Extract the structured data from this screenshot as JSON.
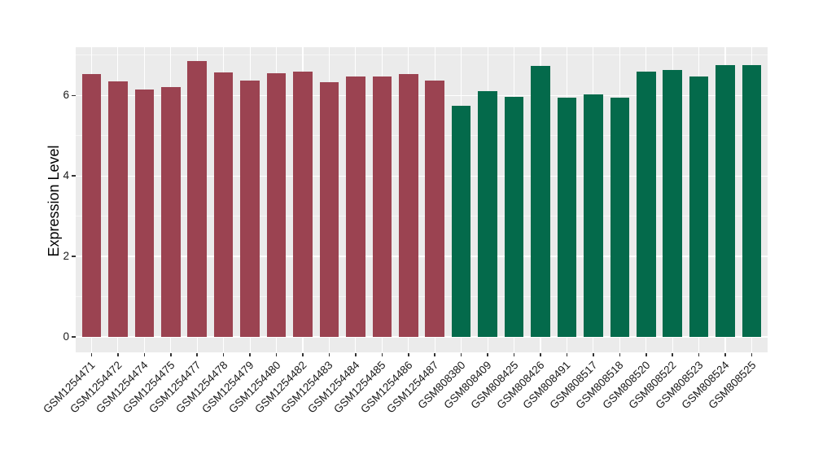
{
  "chart_data": {
    "type": "bar",
    "title": "",
    "xlabel": "",
    "ylabel": "Expression Level",
    "ylim": [
      0,
      7.2
    ],
    "yticks": [
      0,
      2,
      4,
      6
    ],
    "yticks_minor": [
      1,
      3,
      5,
      7
    ],
    "grid": "white major and minor horizontal lines plus vertical major lines on grey panel",
    "legend_position": "none",
    "panel_background": "#EBEBEB",
    "grid_color": "#FFFFFF",
    "axis_text_color": "#1A1A1A",
    "tick_color": "#333333",
    "group_colors": [
      "#9B4351",
      "#046A4B"
    ],
    "categories": [
      "GSM1254471",
      "GSM1254472",
      "GSM1254474",
      "GSM1254475",
      "GSM1254477",
      "GSM1254478",
      "GSM1254479",
      "GSM1254480",
      "GSM1254482",
      "GSM1254483",
      "GSM1254484",
      "GSM1254485",
      "GSM1254486",
      "GSM1254487",
      "GSM808380",
      "GSM808409",
      "GSM808425",
      "GSM808426",
      "GSM808491",
      "GSM808517",
      "GSM808518",
      "GSM808520",
      "GSM808522",
      "GSM808523",
      "GSM808524",
      "GSM808525"
    ],
    "values": [
      6.54,
      6.35,
      6.15,
      6.21,
      6.86,
      6.57,
      6.37,
      6.55,
      6.59,
      6.34,
      6.48,
      6.47,
      6.54,
      6.38,
      5.74,
      6.1,
      5.97,
      6.73,
      5.94,
      6.02,
      5.94,
      6.6,
      6.64,
      6.47,
      6.76,
      6.76
    ],
    "groups": [
      0,
      0,
      0,
      0,
      0,
      0,
      0,
      0,
      0,
      0,
      0,
      0,
      0,
      0,
      1,
      1,
      1,
      1,
      1,
      1,
      1,
      1,
      1,
      1,
      1,
      1
    ]
  }
}
